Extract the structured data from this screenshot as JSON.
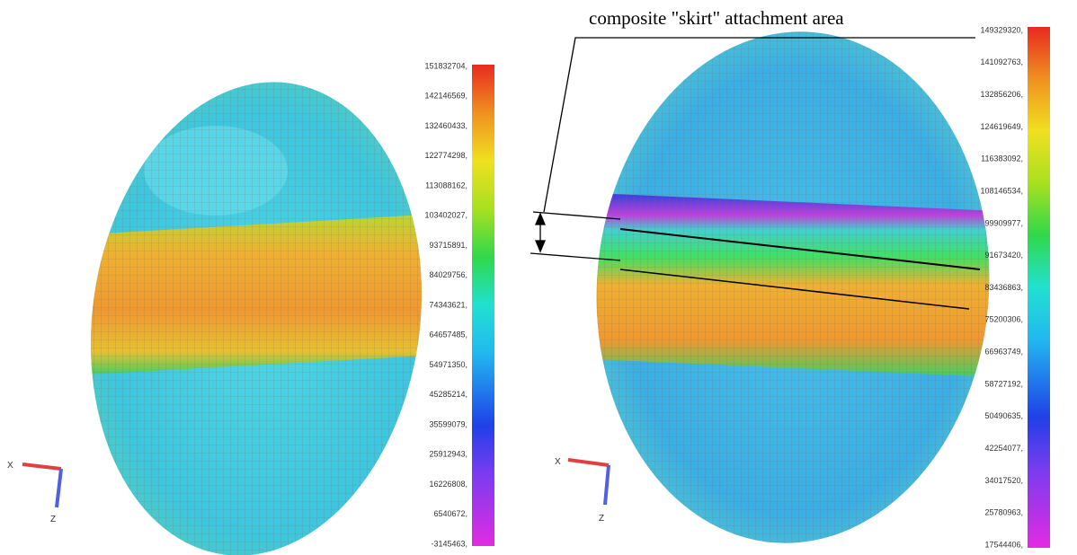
{
  "annotation": "composite \"skirt\" attachment area",
  "left": {
    "scale_labels": [
      "151832704,",
      "142146569,",
      "132460433,",
      "122774298,",
      "113088162,",
      "103402027,",
      "93715891,",
      "84029756,",
      "74343621,",
      "64657485,",
      "54971350,",
      "45285214,",
      "35599079,",
      "25912943,",
      "16226808,",
      "6540672,",
      "-3145463,"
    ],
    "axis_x": "X",
    "axis_z": "Z"
  },
  "right": {
    "scale_labels": [
      "149329320,",
      "141092763,",
      "132856206,",
      "124619649,",
      "116383092,",
      "108146534,",
      "99909977,",
      "91673420,",
      "83436863,",
      "75200306,",
      "66963749,",
      "58727192,",
      "50490635,",
      "42254077,",
      "34017520,",
      "25780963,",
      "17544406,"
    ],
    "axis_x": "X",
    "axis_z": "Z"
  }
}
